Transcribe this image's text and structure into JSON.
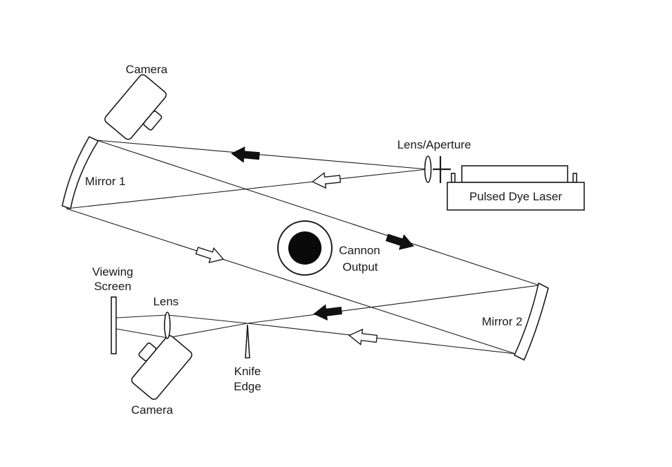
{
  "labels": {
    "camera_top": "Camera",
    "camera_bottom": "Camera",
    "lens_aperture": "Lens/Aperture",
    "laser": "Pulsed Dye Laser",
    "mirror1": "Mirror 1",
    "mirror2": "Mirror 2",
    "cannon_line1": "Cannon",
    "cannon_line2": "Output",
    "viewing_line1": "Viewing",
    "viewing_line2": "Screen",
    "lens": "Lens",
    "knife_line1": "Knife",
    "knife_line2": "Edge"
  }
}
